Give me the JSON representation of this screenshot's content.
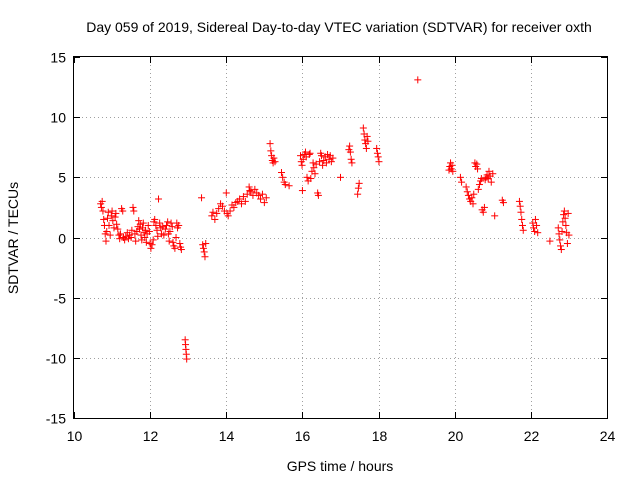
{
  "chart_data": {
    "type": "scatter",
    "title": "Day 059 of 2019, Sidereal Day-to-day VTEC variation (SDTVAR) for receiver oxth",
    "xlabel": "GPS time / hours",
    "ylabel": "SDTVAR / TECUs",
    "xlim": [
      10,
      24
    ],
    "ylim": [
      -15,
      15
    ],
    "xticks": [
      "10",
      "12",
      "14",
      "16",
      "18",
      "20",
      "22",
      "24"
    ],
    "yticks": [
      "15",
      "10",
      "5",
      "0",
      "-5",
      "-10",
      "-15"
    ],
    "grid": true,
    "marker": "+",
    "color": "#ff0000",
    "series": [
      {
        "name": "SDTVAR",
        "points": [
          [
            10.7,
            2.8
          ],
          [
            10.72,
            2.5
          ],
          [
            10.74,
            3.0
          ],
          [
            10.76,
            2.2
          ],
          [
            10.78,
            1.5
          ],
          [
            10.8,
            1.0
          ],
          [
            10.82,
            0.3
          ],
          [
            10.84,
            -0.3
          ],
          [
            10.86,
            0.5
          ],
          [
            10.88,
            1.6
          ],
          [
            10.9,
            2.1
          ],
          [
            10.92,
            1.0
          ],
          [
            10.95,
            0.2
          ],
          [
            10.98,
            1.8
          ],
          [
            11.0,
            2.2
          ],
          [
            11.02,
            1.4
          ],
          [
            11.05,
            0.8
          ],
          [
            11.08,
            1.7
          ],
          [
            11.1,
            2.0
          ],
          [
            11.12,
            1.1
          ],
          [
            11.15,
            0.7
          ],
          [
            11.18,
            0.2
          ],
          [
            11.2,
            -0.1
          ],
          [
            11.22,
            0.3
          ],
          [
            11.25,
            2.4
          ],
          [
            11.28,
            2.2
          ],
          [
            11.3,
            0.0
          ],
          [
            11.33,
            -0.2
          ],
          [
            11.36,
            0.1
          ],
          [
            11.4,
            0.4
          ],
          [
            11.43,
            -0.1
          ],
          [
            11.46,
            0.2
          ],
          [
            11.5,
            0.0
          ],
          [
            11.52,
            0.6
          ],
          [
            11.55,
            2.5
          ],
          [
            11.57,
            2.2
          ],
          [
            11.6,
            0.3
          ],
          [
            11.62,
            -0.3
          ],
          [
            11.65,
            0.5
          ],
          [
            11.68,
            0.9
          ],
          [
            11.7,
            1.4
          ],
          [
            11.72,
            0.7
          ],
          [
            11.74,
            1.1
          ],
          [
            11.76,
            0.2
          ],
          [
            11.78,
            -0.2
          ],
          [
            11.8,
            0.8
          ],
          [
            11.82,
            1.2
          ],
          [
            11.84,
            0.4
          ],
          [
            11.86,
            0.0
          ],
          [
            11.88,
            0.6
          ],
          [
            11.9,
            -0.4
          ],
          [
            11.92,
            0.3
          ],
          [
            11.95,
            1.0
          ],
          [
            11.98,
            0.5
          ],
          [
            12.0,
            -0.5
          ],
          [
            12.02,
            -0.9
          ],
          [
            12.05,
            -0.6
          ],
          [
            12.08,
            -0.2
          ],
          [
            12.1,
            1.3
          ],
          [
            12.12,
            1.5
          ],
          [
            12.15,
            1.0
          ],
          [
            12.18,
            0.6
          ],
          [
            12.2,
            0.1
          ],
          [
            12.22,
            3.2
          ],
          [
            12.25,
            1.2
          ],
          [
            12.28,
            0.8
          ],
          [
            12.3,
            0.3
          ],
          [
            12.33,
            0.9
          ],
          [
            12.36,
            0.2
          ],
          [
            12.4,
            0.7
          ],
          [
            12.43,
            1.0
          ],
          [
            12.46,
            1.3
          ],
          [
            12.48,
            0.3
          ],
          [
            12.5,
            -0.3
          ],
          [
            12.52,
            0.5
          ],
          [
            12.55,
            1.2
          ],
          [
            12.58,
            0.9
          ],
          [
            12.6,
            -0.4
          ],
          [
            12.62,
            -0.7
          ],
          [
            12.65,
            -0.9
          ],
          [
            12.68,
            0.0
          ],
          [
            12.7,
            1.2
          ],
          [
            12.72,
            0.8
          ],
          [
            12.75,
            1.0
          ],
          [
            12.78,
            -0.5
          ],
          [
            12.8,
            -0.8
          ],
          [
            12.82,
            -1.0
          ],
          [
            12.92,
            -8.5
          ],
          [
            12.93,
            -8.9
          ],
          [
            12.94,
            -9.3
          ],
          [
            12.95,
            -9.7
          ],
          [
            12.96,
            -10.1
          ],
          [
            13.35,
            3.3
          ],
          [
            13.38,
            -0.6
          ],
          [
            13.4,
            -0.9
          ],
          [
            13.42,
            -1.2
          ],
          [
            13.44,
            -1.6
          ],
          [
            13.46,
            -0.5
          ],
          [
            13.62,
            1.8
          ],
          [
            13.65,
            2.1
          ],
          [
            13.7,
            1.5
          ],
          [
            13.75,
            2.0
          ],
          [
            13.8,
            2.4
          ],
          [
            13.85,
            2.8
          ],
          [
            13.9,
            2.6
          ],
          [
            13.95,
            2.2
          ],
          [
            14.0,
            3.7
          ],
          [
            14.02,
            2.0
          ],
          [
            14.05,
            1.8
          ],
          [
            14.1,
            2.2
          ],
          [
            14.15,
            2.7
          ],
          [
            14.2,
            2.5
          ],
          [
            14.25,
            2.9
          ],
          [
            14.3,
            3.0
          ],
          [
            14.35,
            3.2
          ],
          [
            14.4,
            2.8
          ],
          [
            14.45,
            3.4
          ],
          [
            14.5,
            3.0
          ],
          [
            14.55,
            3.6
          ],
          [
            14.6,
            4.2
          ],
          [
            14.62,
            3.9
          ],
          [
            14.65,
            3.8
          ],
          [
            14.7,
            3.5
          ],
          [
            14.75,
            4.0
          ],
          [
            14.8,
            3.7
          ],
          [
            14.85,
            3.5
          ],
          [
            14.9,
            3.2
          ],
          [
            14.95,
            3.6
          ],
          [
            15.0,
            2.9
          ],
          [
            15.05,
            3.3
          ],
          [
            15.15,
            7.8
          ],
          [
            15.17,
            7.2
          ],
          [
            15.19,
            6.8
          ],
          [
            15.21,
            6.4
          ],
          [
            15.23,
            6.2
          ],
          [
            15.25,
            6.6
          ],
          [
            15.28,
            6.3
          ],
          [
            15.45,
            5.4
          ],
          [
            15.48,
            5.0
          ],
          [
            15.52,
            4.6
          ],
          [
            15.55,
            4.4
          ],
          [
            15.65,
            4.3
          ],
          [
            15.95,
            6.8
          ],
          [
            15.97,
            6.3
          ],
          [
            15.99,
            6.0
          ],
          [
            16.0,
            3.9
          ],
          [
            16.02,
            6.5
          ],
          [
            16.05,
            6.9
          ],
          [
            16.08,
            7.1
          ],
          [
            16.1,
            6.7
          ],
          [
            16.12,
            5.0
          ],
          [
            16.15,
            4.7
          ],
          [
            16.18,
            6.9
          ],
          [
            16.2,
            7.0
          ],
          [
            16.22,
            4.9
          ],
          [
            16.25,
            5.5
          ],
          [
            16.28,
            6.2
          ],
          [
            16.3,
            5.8
          ],
          [
            16.33,
            5.3
          ],
          [
            16.36,
            6.1
          ],
          [
            16.4,
            3.7
          ],
          [
            16.42,
            3.5
          ],
          [
            16.45,
            6.3
          ],
          [
            16.48,
            7.0
          ],
          [
            16.5,
            6.8
          ],
          [
            16.53,
            6.0
          ],
          [
            16.56,
            6.4
          ],
          [
            16.6,
            6.7
          ],
          [
            16.63,
            6.2
          ],
          [
            16.66,
            6.9
          ],
          [
            16.7,
            6.5
          ],
          [
            16.73,
            6.8
          ],
          [
            16.76,
            6.3
          ],
          [
            16.8,
            6.6
          ],
          [
            17.0,
            5.0
          ],
          [
            17.22,
            7.3
          ],
          [
            17.24,
            7.6
          ],
          [
            17.26,
            7.1
          ],
          [
            17.28,
            6.5
          ],
          [
            17.3,
            6.2
          ],
          [
            17.45,
            3.6
          ],
          [
            17.47,
            4.1
          ],
          [
            17.49,
            4.5
          ],
          [
            17.6,
            9.1
          ],
          [
            17.62,
            8.6
          ],
          [
            17.64,
            8.1
          ],
          [
            17.66,
            7.8
          ],
          [
            17.68,
            7.4
          ],
          [
            17.7,
            8.4
          ],
          [
            17.72,
            8.0
          ],
          [
            17.95,
            7.4
          ],
          [
            17.97,
            7.0
          ],
          [
            17.99,
            6.7
          ],
          [
            18.01,
            6.3
          ],
          [
            19.03,
            13.1
          ],
          [
            19.85,
            5.6
          ],
          [
            19.87,
            5.9
          ],
          [
            19.89,
            6.2
          ],
          [
            19.91,
            5.7
          ],
          [
            19.93,
            6.0
          ],
          [
            19.95,
            5.5
          ],
          [
            20.15,
            5.0
          ],
          [
            20.18,
            4.6
          ],
          [
            20.3,
            4.2
          ],
          [
            20.33,
            3.8
          ],
          [
            20.36,
            3.5
          ],
          [
            20.39,
            3.2
          ],
          [
            20.42,
            3.0
          ],
          [
            20.45,
            3.3
          ],
          [
            20.48,
            2.8
          ],
          [
            20.5,
            3.6
          ],
          [
            20.53,
            6.2
          ],
          [
            20.55,
            5.9
          ],
          [
            20.58,
            6.1
          ],
          [
            20.6,
            5.7
          ],
          [
            20.62,
            4.0
          ],
          [
            20.65,
            4.4
          ],
          [
            20.68,
            4.7
          ],
          [
            20.7,
            4.9
          ],
          [
            20.72,
            2.3
          ],
          [
            20.75,
            2.1
          ],
          [
            20.78,
            2.5
          ],
          [
            20.8,
            4.8
          ],
          [
            20.82,
            5.0
          ],
          [
            20.85,
            5.2
          ],
          [
            20.88,
            4.9
          ],
          [
            20.9,
            5.5
          ],
          [
            20.93,
            5.1
          ],
          [
            20.96,
            4.6
          ],
          [
            21.0,
            5.3
          ],
          [
            21.05,
            1.8
          ],
          [
            21.25,
            3.1
          ],
          [
            21.28,
            2.9
          ],
          [
            21.7,
            3.0
          ],
          [
            21.72,
            2.6
          ],
          [
            21.74,
            2.1
          ],
          [
            21.76,
            1.5
          ],
          [
            21.78,
            1.0
          ],
          [
            21.8,
            0.6
          ],
          [
            22.05,
            1.2
          ],
          [
            22.07,
            0.8
          ],
          [
            22.1,
            0.5
          ],
          [
            22.12,
            1.5
          ],
          [
            22.15,
            1.0
          ],
          [
            22.18,
            0.4
          ],
          [
            22.5,
            -0.3
          ],
          [
            22.72,
            0.8
          ],
          [
            22.74,
            0.3
          ],
          [
            22.76,
            -0.2
          ],
          [
            22.78,
            -0.7
          ],
          [
            22.8,
            -1.0
          ],
          [
            22.82,
            0.5
          ],
          [
            22.84,
            1.3
          ],
          [
            22.86,
            1.9
          ],
          [
            22.88,
            2.2
          ],
          [
            22.9,
            1.6
          ],
          [
            22.92,
            1.0
          ],
          [
            22.94,
            0.4
          ],
          [
            22.96,
            -0.5
          ],
          [
            22.98,
            2.0
          ],
          [
            23.0,
            0.2
          ]
        ]
      }
    ]
  }
}
